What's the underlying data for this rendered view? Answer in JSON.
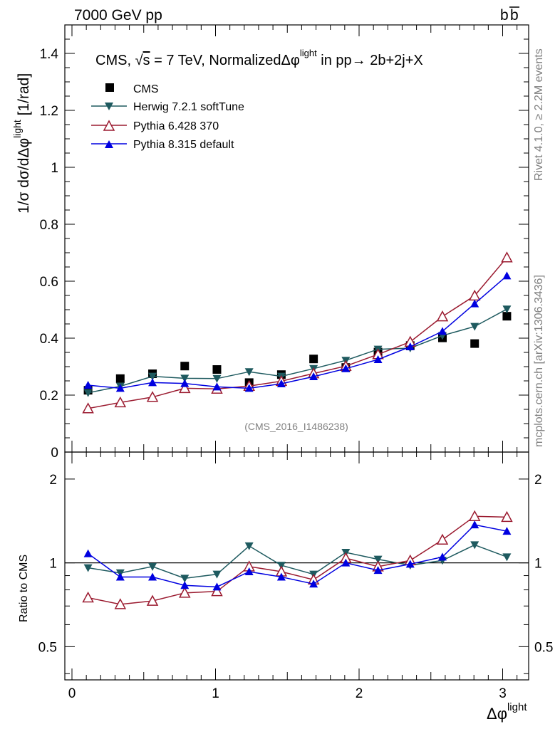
{
  "header": {
    "left": "7000 GeV pp",
    "right_base": "b",
    "right_bar": "b"
  },
  "side": {
    "rivet": "Rivet 4.1.0, ≥ 2.2M events",
    "mcplots": "mcplots.cern.ch [arXiv:1306.3436]"
  },
  "analysis_tag": "(CMS_2016_I1486238)",
  "title": {
    "prefix": "CMS, ",
    "sqrt": "√",
    "s": "s",
    "mid": " = 7 TeV, NormalizedΔφ",
    "sup": "light",
    "suffix": " in pp→  2b+2j+X"
  },
  "axis": {
    "ylabel_main": "1/σ dσ/dΔφ",
    "ylabel_sup": "light",
    "ylabel_unit": " [1/rad]",
    "ylabel_ratio": "Ratio to CMS",
    "xlabel": "Δφ",
    "xlabel_sup": "light"
  },
  "colors": {
    "cms": "#000000",
    "herwig": "#1e5a5f",
    "p6": "#9b1b30",
    "p8": "#0000e0",
    "refline": "#000000",
    "frame": "#000000"
  },
  "chart_data": [
    {
      "type": "line",
      "panel": "main",
      "xlim": [
        -0.05,
        3.14159
      ],
      "ylim": [
        0,
        1.5
      ],
      "yticks": [
        0,
        0.2,
        0.4,
        0.6,
        0.8,
        1,
        1.2,
        1.4
      ],
      "ytick_labels": [
        "0",
        "0.2",
        "0.4",
        "0.6",
        "0.8",
        "1",
        "1.2",
        "1.4"
      ],
      "legend_position": "top-left",
      "x": [
        0.1122,
        0.3366,
        0.561,
        0.7854,
        1.0098,
        1.2342,
        1.4586,
        1.683,
        1.9074,
        2.1318,
        2.3562,
        2.5806,
        2.805,
        3.0294
      ],
      "series": [
        {
          "name": "CMS",
          "key": "cms",
          "marker": "square",
          "line": false,
          "values": [
            0.217,
            0.258,
            0.275,
            0.302,
            0.29,
            0.244,
            0.272,
            0.327,
            0.297,
            0.351,
            0.374,
            0.401,
            0.381,
            0.477
          ]
        },
        {
          "name": "Herwig 7.2.1 softTune",
          "key": "herwig",
          "marker": "tri-down",
          "line": true,
          "values": [
            0.208,
            0.231,
            0.266,
            0.259,
            0.258,
            0.282,
            0.266,
            0.293,
            0.322,
            0.361,
            0.365,
            0.409,
            0.441,
            0.502
          ]
        },
        {
          "name": "Pythia 6.428 370",
          "key": "p6",
          "marker": "tri-up-open",
          "line": true,
          "values": [
            0.153,
            0.174,
            0.193,
            0.224,
            0.222,
            0.232,
            0.249,
            0.276,
            0.302,
            0.343,
            0.387,
            0.476,
            0.549,
            0.683
          ]
        },
        {
          "name": "Pythia 8.315 default",
          "key": "p8",
          "marker": "tri-up",
          "line": true,
          "values": [
            0.235,
            0.224,
            0.244,
            0.241,
            0.229,
            0.224,
            0.24,
            0.265,
            0.293,
            0.325,
            0.37,
            0.424,
            0.521,
            0.619
          ]
        }
      ]
    },
    {
      "type": "line",
      "panel": "ratio",
      "ylabel": "Ratio to CMS",
      "yscale": "log",
      "ylim": [
        0.38,
        2.5
      ],
      "yticks": [
        0.5,
        1,
        2
      ],
      "ytick_labels": [
        "0.5",
        "1",
        "2"
      ],
      "xticks": [
        0,
        1,
        2,
        3
      ],
      "xtick_labels": [
        "0",
        "1",
        "2",
        "3"
      ],
      "x": [
        0.1122,
        0.3366,
        0.561,
        0.7854,
        1.0098,
        1.2342,
        1.4586,
        1.683,
        1.9074,
        2.1318,
        2.3562,
        2.5806,
        2.805,
        3.0294
      ],
      "series": [
        {
          "name": "Herwig 7.2.1 softTune",
          "key": "herwig",
          "marker": "tri-down",
          "line": true,
          "values": [
            0.96,
            0.92,
            0.97,
            0.88,
            0.91,
            1.15,
            0.98,
            0.91,
            1.09,
            1.03,
            0.98,
            1.02,
            1.16,
            1.05
          ]
        },
        {
          "name": "Pythia 6.428 370",
          "key": "p6",
          "marker": "tri-up-open",
          "line": true,
          "values": [
            0.75,
            0.71,
            0.73,
            0.78,
            0.79,
            0.97,
            0.93,
            0.87,
            1.04,
            0.97,
            1.02,
            1.21,
            1.47,
            1.46
          ]
        },
        {
          "name": "Pythia 8.315 default",
          "key": "p8",
          "marker": "tri-up",
          "line": true,
          "values": [
            1.08,
            0.89,
            0.89,
            0.83,
            0.82,
            0.93,
            0.89,
            0.84,
            1.0,
            0.94,
            0.99,
            1.05,
            1.37,
            1.3
          ]
        }
      ]
    }
  ]
}
